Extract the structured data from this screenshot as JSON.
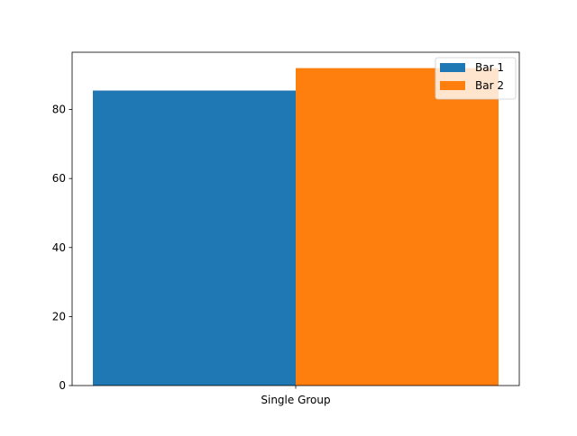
{
  "chart_data": {
    "type": "bar",
    "title": "",
    "xlabel": "",
    "ylabel": "",
    "categories": [
      "Single Group"
    ],
    "series": [
      {
        "name": "Bar 1",
        "values": [
          85.5
        ],
        "color": "#1f77b4"
      },
      {
        "name": "Bar 2",
        "values": [
          92.0
        ],
        "color": "#ff7f0e"
      }
    ],
    "ylim": [
      0,
      96.6
    ],
    "yticks": [
      0,
      20,
      40,
      60,
      80
    ],
    "grid": false,
    "legend": {
      "placement": "top-right"
    }
  }
}
